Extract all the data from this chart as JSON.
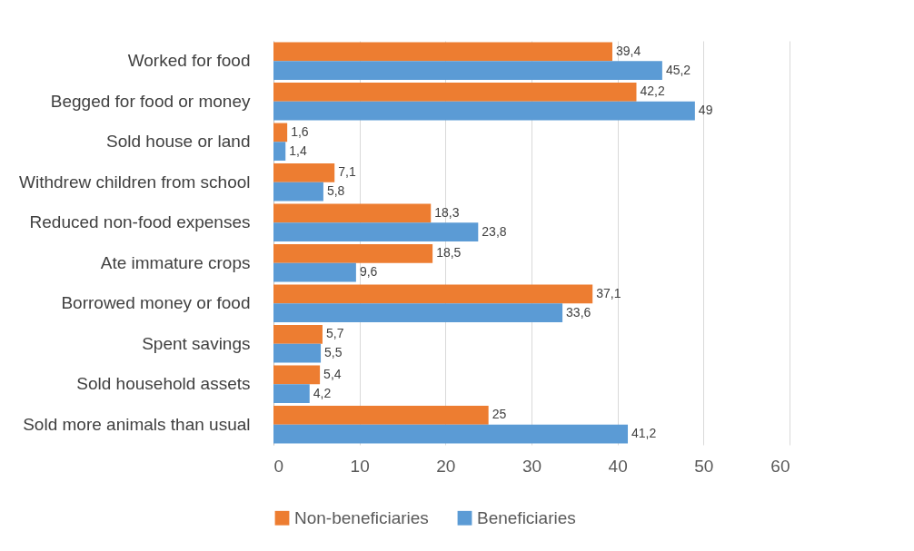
{
  "chart_data": {
    "type": "bar",
    "orientation": "horizontal",
    "categories": [
      "Worked for food",
      "Begged for food or money",
      "Sold house or land",
      "Withdrew children from school",
      "Reduced non-food expenses",
      "Ate immature crops",
      "Borrowed money or food",
      "Spent savings",
      "Sold household assets",
      "Sold more animals than usual"
    ],
    "series": [
      {
        "name": "Non-beneficiaries",
        "color": "#ed7d31",
        "values": [
          39.4,
          42.2,
          1.6,
          7.1,
          18.3,
          18.5,
          37.1,
          5.7,
          5.4,
          25
        ],
        "value_labels": [
          "39,4",
          "42,2",
          "1,6",
          "7,1",
          "18,3",
          "18,5",
          "37,1",
          "5,7",
          "5,4",
          "25"
        ]
      },
      {
        "name": "Beneficiaries",
        "color": "#5b9bd5",
        "values": [
          45.2,
          49,
          1.4,
          5.8,
          23.8,
          9.6,
          33.6,
          5.5,
          4.2,
          41.2
        ],
        "value_labels": [
          "45,2",
          "49",
          "1,4",
          "5,8",
          "23,8",
          "9,6",
          "33,6",
          "5,5",
          "4,2",
          "41,2"
        ]
      }
    ],
    "xlim": [
      0,
      60
    ],
    "xticks": [
      0,
      10,
      20,
      30,
      40,
      50,
      60
    ],
    "grid": "x",
    "legend": "bottom"
  }
}
